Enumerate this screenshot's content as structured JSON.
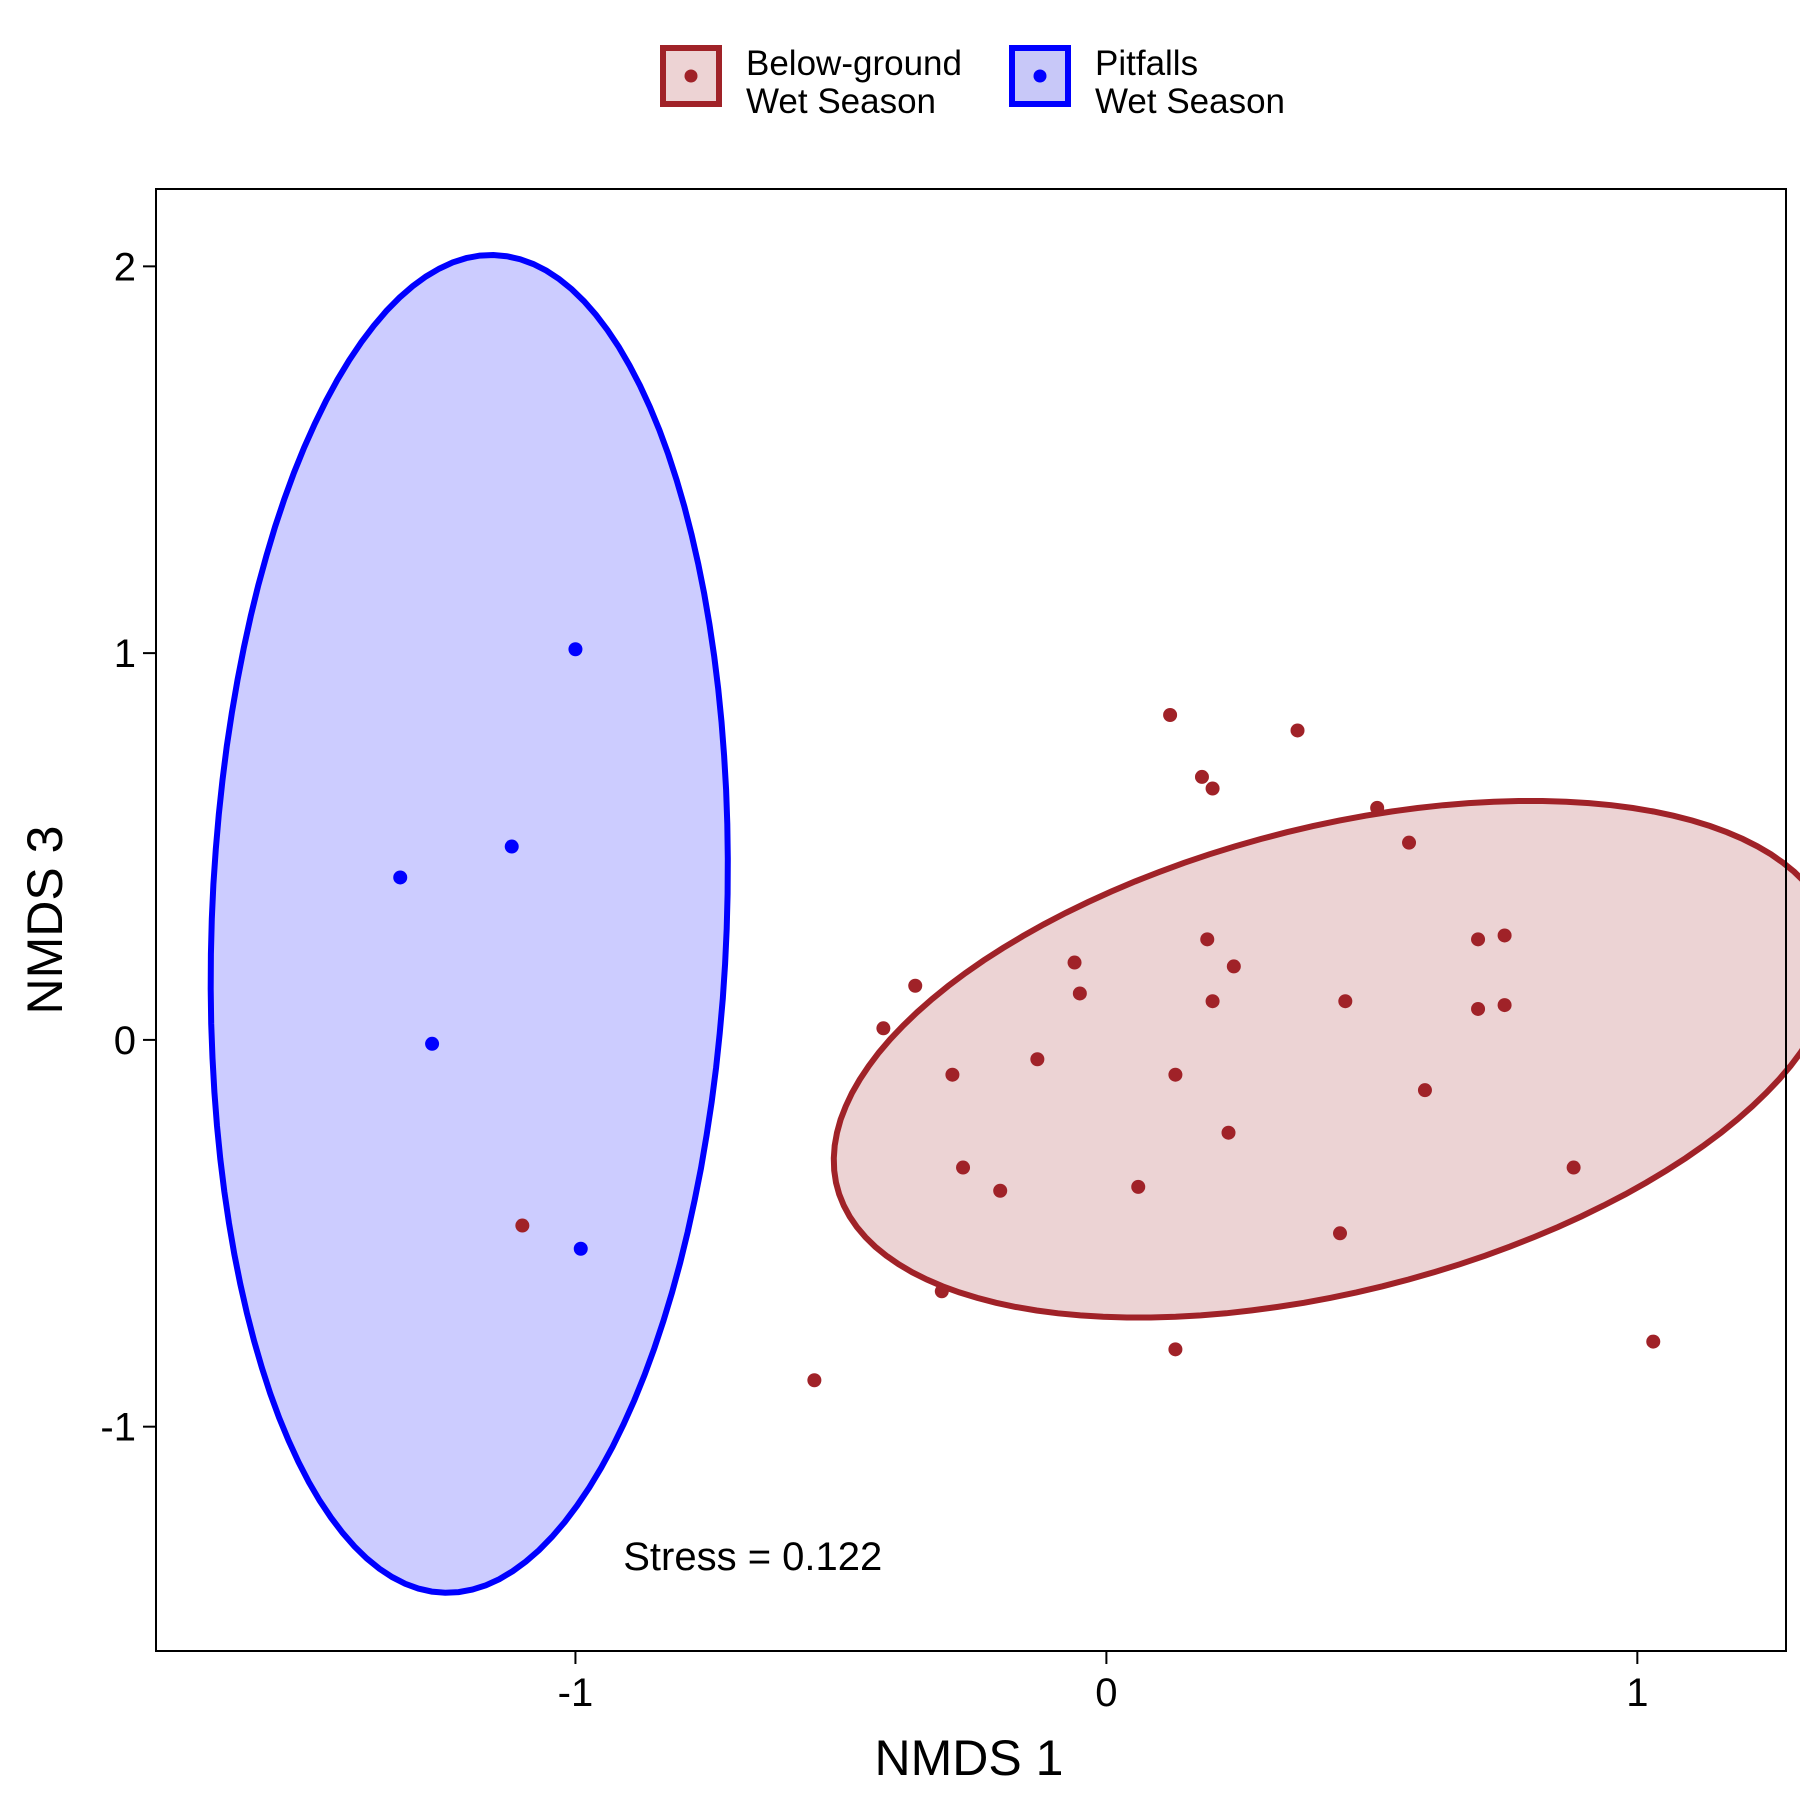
{
  "legend": {
    "items": [
      {
        "line1": "Below-ground",
        "line2": "Wet Season",
        "stroke": "#A02228",
        "fill": "#EDD3D4"
      },
      {
        "line1": "Pitfalls",
        "line2": "Wet Season",
        "stroke": "#0000FF",
        "fill": "#C8C8F8"
      }
    ]
  },
  "chart_data": {
    "type": "scatter",
    "xlabel": "NMDS 1",
    "ylabel": "NMDS 3",
    "xlim": [
      -1.79,
      1.28
    ],
    "ylim": [
      -1.58,
      2.2
    ],
    "xticks": [
      -1,
      0,
      1
    ],
    "yticks": [
      -1,
      0,
      1,
      2
    ],
    "grid": false,
    "legend_position": "top",
    "annotation": "Stress = 0.122",
    "annotation_at": [
      -0.91,
      -1.37
    ],
    "series": [
      {
        "name": "Below-ground Wet Season",
        "color": "#A02228",
        "fill": "#EDD3D4",
        "ellipse": {
          "cx": 0.43,
          "cy": -0.05,
          "rx": 1.0,
          "ry": 0.58,
          "angle_deg": 24
        },
        "points": [
          [
            0.12,
            0.84
          ],
          [
            0.36,
            0.8
          ],
          [
            0.18,
            0.68
          ],
          [
            0.2,
            0.65
          ],
          [
            0.51,
            0.6
          ],
          [
            0.57,
            0.51
          ],
          [
            0.19,
            0.26
          ],
          [
            0.7,
            0.26
          ],
          [
            0.75,
            0.27
          ],
          [
            -0.06,
            0.2
          ],
          [
            0.24,
            0.19
          ],
          [
            -0.36,
            0.14
          ],
          [
            -0.05,
            0.12
          ],
          [
            0.2,
            0.1
          ],
          [
            0.45,
            0.1
          ],
          [
            0.7,
            0.08
          ],
          [
            0.75,
            0.09
          ],
          [
            -0.42,
            0.03
          ],
          [
            -0.13,
            -0.05
          ],
          [
            -0.29,
            -0.09
          ],
          [
            0.13,
            -0.09
          ],
          [
            0.6,
            -0.13
          ],
          [
            0.23,
            -0.24
          ],
          [
            -0.27,
            -0.33
          ],
          [
            0.88,
            -0.33
          ],
          [
            0.06,
            -0.38
          ],
          [
            -0.2,
            -0.39
          ],
          [
            -1.1,
            -0.48
          ],
          [
            0.44,
            -0.5
          ],
          [
            -0.31,
            -0.65
          ],
          [
            1.03,
            -0.78
          ],
          [
            0.13,
            -0.8
          ],
          [
            -0.55,
            -0.88
          ]
        ]
      },
      {
        "name": "Pitfalls Wet Season",
        "color": "#0000FF",
        "fill": "#C8C8F8",
        "ellipse": {
          "cx": -1.2,
          "cy": 0.3,
          "rx": 0.485,
          "ry": 1.73,
          "angle_deg": -1.5
        },
        "points": [
          [
            -1.0,
            1.01
          ],
          [
            -1.12,
            0.5
          ],
          [
            -1.33,
            0.42
          ],
          [
            -1.27,
            -0.01
          ],
          [
            -0.99,
            -0.54
          ]
        ]
      }
    ]
  }
}
